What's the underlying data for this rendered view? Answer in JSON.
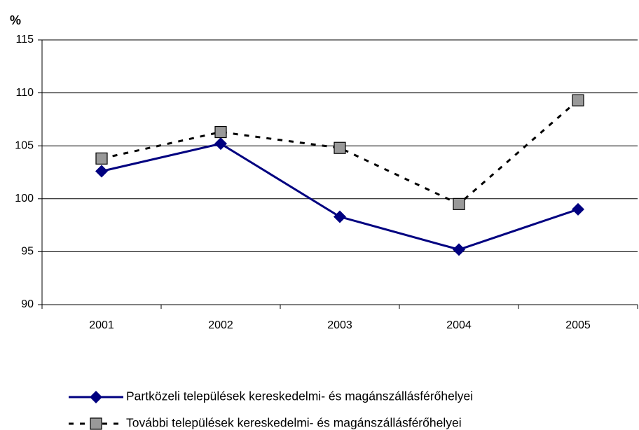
{
  "chart_data": {
    "type": "line",
    "y_label": "%",
    "categories": [
      "2001",
      "2002",
      "2003",
      "2004",
      "2005"
    ],
    "series": [
      {
        "name": "Partközeli települések kereskedelmi- és magánszállásférőhelyei",
        "color": "#000080",
        "marker": "diamond",
        "dashed": false,
        "values": [
          102.6,
          105.2,
          98.3,
          95.2,
          99.0
        ]
      },
      {
        "name": "További települések kereskedelmi- és magánszállásférőhelyei",
        "color": "#000000",
        "marker_color": "#999999",
        "marker": "square",
        "dashed": true,
        "values": [
          103.8,
          106.3,
          104.8,
          99.5,
          109.3
        ]
      }
    ],
    "ylim": [
      90,
      115
    ],
    "yticks": [
      90,
      95,
      100,
      105,
      110,
      115
    ],
    "grid": true
  }
}
